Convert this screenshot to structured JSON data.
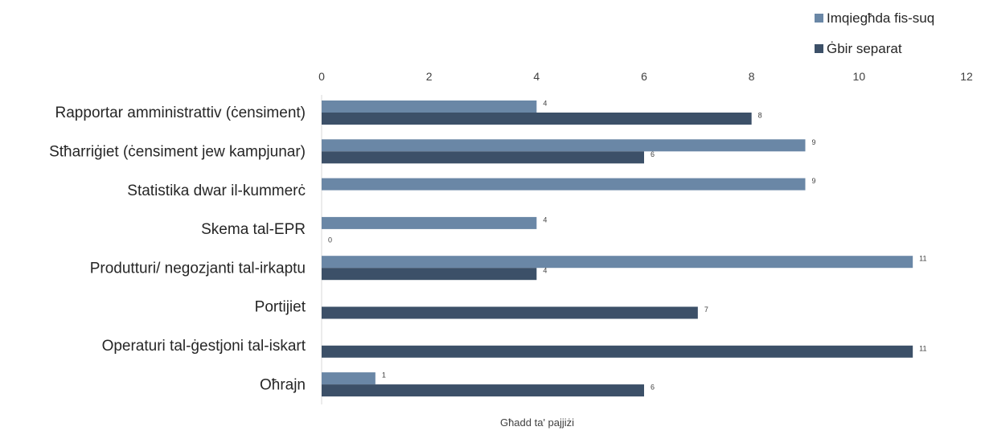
{
  "chart_data": {
    "type": "bar",
    "orientation": "horizontal",
    "categories": [
      "Rapportar amministrattiv (ċensiment)",
      "Stħarriġiet (ċensiment jew kampjunar)",
      "Statistika dwar il-kummerċ",
      "Skema tal-EPR",
      "Produtturi/ negozjanti tal-irkaptu",
      "Portijiet",
      "Operaturi tal-ġestjoni tal-iskart",
      "Oħrajn"
    ],
    "series": [
      {
        "name": "Imqiegħda fis-suq",
        "color": "#6a87a6",
        "values": [
          4,
          9,
          9,
          4,
          11,
          null,
          null,
          1
        ]
      },
      {
        "name": "Ġbir separat",
        "color": "#3c5068",
        "values": [
          8,
          6,
          null,
          0,
          4,
          7,
          11,
          6
        ]
      }
    ],
    "xlabel": "Għadd ta' pajjiżi",
    "ylabel": "",
    "xlim": [
      0,
      12
    ],
    "xticks": [
      0,
      2,
      4,
      6,
      8,
      10,
      12
    ],
    "xaxis_position": "top",
    "grid": false,
    "legend_position": "top-right"
  }
}
